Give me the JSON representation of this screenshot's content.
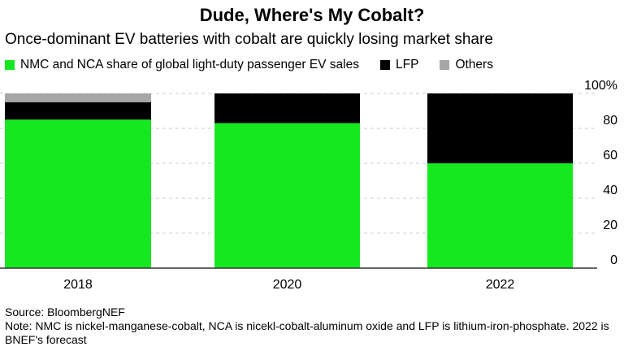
{
  "chart_data": {
    "type": "bar",
    "stacked": true,
    "title": "Dude, Where's My Cobalt?",
    "subtitle": "Once-dominant EV batteries with cobalt are quickly losing market share",
    "categories": [
      "2018",
      "2020",
      "2022"
    ],
    "series": [
      {
        "name": "NMC and NCA share of global light-duty passenger EV sales",
        "color": "#16e81f",
        "values": [
          85,
          83,
          60
        ]
      },
      {
        "name": "LFP",
        "color": "#000000",
        "values": [
          10,
          17,
          40
        ]
      },
      {
        "name": "Others",
        "color": "#a6a6a6",
        "values": [
          5,
          0,
          0
        ]
      }
    ],
    "ylim": [
      0,
      100
    ],
    "yticks": [
      "0",
      "20",
      "40",
      "60",
      "80",
      "100%"
    ],
    "ytick_values": [
      0,
      20,
      40,
      60,
      80,
      100
    ],
    "y_axis_position": "right",
    "grid": true,
    "legend_position": "top-left"
  },
  "footer": {
    "source": "Source: BloombergNEF",
    "note": "Note: NMC is nickel-manganese-cobalt, NCA is nicekl-cobalt-aluminum oxide and LFP is lithium-iron-phosphate. 2022 is BNEF's forecast"
  }
}
